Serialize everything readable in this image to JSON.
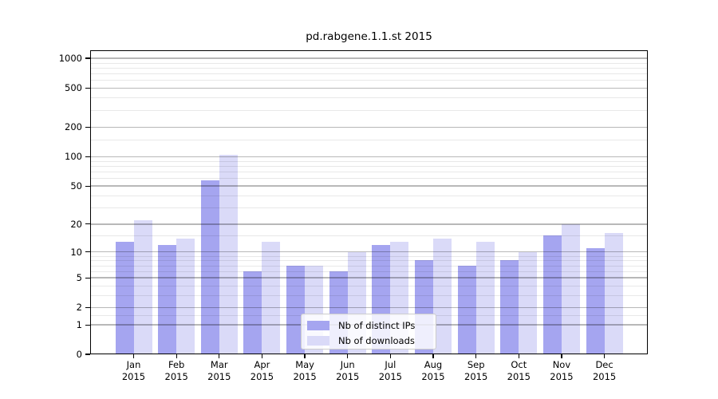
{
  "chart_data": {
    "type": "bar",
    "title": "pd.rabgene.1.1.st 2015",
    "categories": [
      "Jan",
      "Feb",
      "Mar",
      "Apr",
      "May",
      "Jun",
      "Jul",
      "Aug",
      "Sep",
      "Oct",
      "Nov",
      "Dec"
    ],
    "category_year": "2015",
    "series": [
      {
        "name": "Nb of distinct IPs",
        "color": "#a5a5f0",
        "values": [
          13,
          12,
          57,
          6,
          7,
          6,
          12,
          8,
          7,
          8,
          15,
          11
        ]
      },
      {
        "name": "Nb of downloads",
        "color": "#dadaf8",
        "values": [
          22,
          14,
          104,
          13,
          7,
          10,
          13,
          14,
          13,
          10,
          20,
          16
        ]
      }
    ],
    "xlabel": "",
    "ylabel": "",
    "yscale": "log1p",
    "ylim": [
      0,
      1270
    ],
    "y_major_ticks": [
      1000,
      500,
      200,
      100,
      50,
      20,
      10,
      5,
      2,
      1,
      0
    ],
    "y_minor_ticks": [
      1.5,
      3,
      4,
      6,
      7,
      8,
      9,
      15,
      30,
      40,
      60,
      70,
      80,
      90,
      150,
      300,
      400,
      600,
      700,
      800,
      900
    ],
    "grid": true,
    "legend_position": "lower-center-inside"
  }
}
